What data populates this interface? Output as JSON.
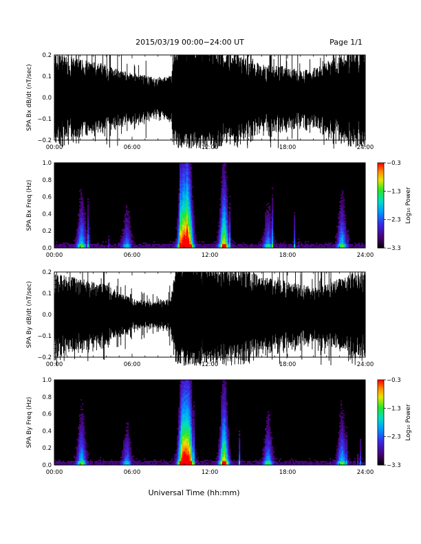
{
  "header": {
    "title": "2015/03/19   00:00−24:00 UT",
    "page_label": "Page 1/1"
  },
  "x_axis_label": "Universal Time (hh:mm)",
  "chart_data": [
    {
      "type": "line",
      "panel": "bx-dbdt",
      "ylabel": "SPA Bx dB/dt (nT/sec)",
      "xlim": [
        0,
        24
      ],
      "ylim": [
        -0.2,
        0.2
      ],
      "x_ticks": [
        "00:00",
        "06:00",
        "12:00",
        "18:00",
        "24:00"
      ],
      "y_ticks": [
        "−0.2",
        "−0.1",
        "0.0",
        "0.1",
        "0.2"
      ],
      "amplitude_envelope_hours": [
        0,
        1,
        2,
        3,
        4,
        5,
        6,
        7,
        8,
        9,
        9.5,
        10,
        11,
        12,
        13,
        14,
        15,
        16,
        17,
        18,
        19,
        20,
        21,
        22,
        23,
        24
      ],
      "amplitude_envelope_nT_s": [
        0.17,
        0.15,
        0.14,
        0.13,
        0.12,
        0.1,
        0.09,
        0.08,
        0.07,
        0.08,
        0.22,
        0.25,
        0.24,
        0.2,
        0.18,
        0.16,
        0.14,
        0.12,
        0.12,
        0.11,
        0.1,
        0.11,
        0.13,
        0.15,
        0.17,
        0.18
      ]
    },
    {
      "type": "heatmap",
      "panel": "bx-spectrogram",
      "ylabel": "SPA Bx Freq (Hz)",
      "xlim": [
        0,
        24
      ],
      "ylim": [
        0,
        1.0
      ],
      "x_ticks": [
        "00:00",
        "06:00",
        "12:00",
        "18:00",
        "24:00"
      ],
      "y_ticks": [
        "0.0",
        "0.2",
        "0.4",
        "0.6",
        "0.8",
        "1.0"
      ],
      "colorbar": {
        "label": "Log₁₀ Power",
        "range": [
          -3.3,
          -0.3
        ],
        "ticks": [
          "−0.3",
          "−1.3",
          "−2.3",
          "−3.3"
        ]
      },
      "activity_peaks": [
        {
          "time_hours": 9.9,
          "strength": 1.0
        },
        {
          "time_hours": 10.4,
          "strength": 0.9
        },
        {
          "time_hours": 13.1,
          "strength": 0.85
        },
        {
          "time_hours": 2.1,
          "strength": 0.5
        },
        {
          "time_hours": 5.6,
          "strength": 0.35
        },
        {
          "time_hours": 16.5,
          "strength": 0.4
        },
        {
          "time_hours": 22.2,
          "strength": 0.5
        }
      ]
    },
    {
      "type": "line",
      "panel": "by-dbdt",
      "ylabel": "SPA By dB/dt (nT/sec)",
      "xlim": [
        0,
        24
      ],
      "ylim": [
        -0.2,
        0.2
      ],
      "x_ticks": [
        "00:00",
        "06:00",
        "12:00",
        "18:00",
        "24:00"
      ],
      "y_ticks": [
        "−0.2",
        "−0.1",
        "0.0",
        "0.1",
        "0.2"
      ],
      "amplitude_envelope_hours": [
        0,
        1,
        2,
        3,
        4,
        5,
        6,
        7,
        8,
        9,
        9.5,
        10,
        11,
        12,
        13,
        14,
        15,
        16,
        17,
        18,
        19,
        20,
        21,
        22,
        23,
        24
      ],
      "amplitude_envelope_nT_s": [
        0.15,
        0.14,
        0.13,
        0.12,
        0.11,
        0.08,
        0.06,
        0.05,
        0.05,
        0.06,
        0.22,
        0.25,
        0.24,
        0.2,
        0.18,
        0.17,
        0.16,
        0.14,
        0.13,
        0.12,
        0.11,
        0.1,
        0.11,
        0.13,
        0.15,
        0.16
      ]
    },
    {
      "type": "heatmap",
      "panel": "by-spectrogram",
      "ylabel": "SPA By Freq (Hz)",
      "xlim": [
        0,
        24
      ],
      "ylim": [
        0,
        1.0
      ],
      "x_ticks": [
        "00:00",
        "06:00",
        "12:00",
        "18:00",
        "24:00"
      ],
      "y_ticks": [
        "0.0",
        "0.2",
        "0.4",
        "0.6",
        "0.8",
        "1.0"
      ],
      "colorbar": {
        "label": "Log₁₀ Power",
        "range": [
          -3.3,
          -0.3
        ],
        "ticks": [
          "−0.3",
          "−1.3",
          "−2.3",
          "−3.3"
        ]
      },
      "activity_peaks": [
        {
          "time_hours": 9.9,
          "strength": 1.0
        },
        {
          "time_hours": 10.4,
          "strength": 0.95
        },
        {
          "time_hours": 13.1,
          "strength": 0.85
        },
        {
          "time_hours": 2.1,
          "strength": 0.5
        },
        {
          "time_hours": 5.6,
          "strength": 0.35
        },
        {
          "time_hours": 16.5,
          "strength": 0.45
        },
        {
          "time_hours": 22.2,
          "strength": 0.5
        }
      ]
    }
  ]
}
